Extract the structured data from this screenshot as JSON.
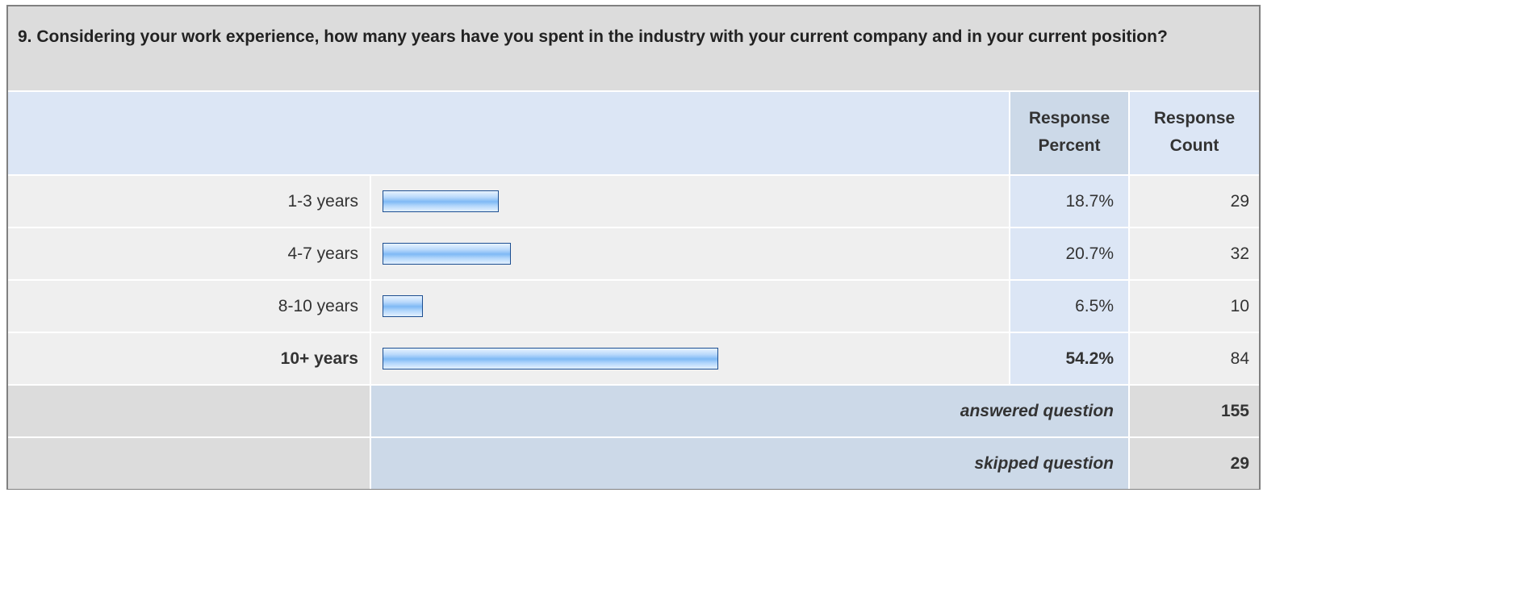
{
  "question": "9. Considering your work experience, how many years have you spent in the industry with your current company and in your current position?",
  "headers": {
    "percent_line1": "Response",
    "percent_line2": "Percent",
    "count_line1": "Response",
    "count_line2": "Count"
  },
  "chart_data": {
    "type": "bar",
    "categories": [
      "1-3 years",
      "4-7 years",
      "8-10 years",
      "10+ years"
    ],
    "values": [
      18.7,
      20.7,
      6.5,
      54.2
    ],
    "percent_labels": [
      "18.7%",
      "20.7%",
      "6.5%",
      "54.2%"
    ],
    "counts": [
      "29",
      "32",
      "10",
      "84"
    ],
    "highlight_index": 3,
    "unit": "%"
  },
  "summary": {
    "answered_label": "answered question",
    "answered_value": "155",
    "skipped_label": "skipped question",
    "skipped_value": "29"
  },
  "colors": {
    "bar_border": "#1d4f91",
    "bar_fill": "#7fb9f5"
  }
}
